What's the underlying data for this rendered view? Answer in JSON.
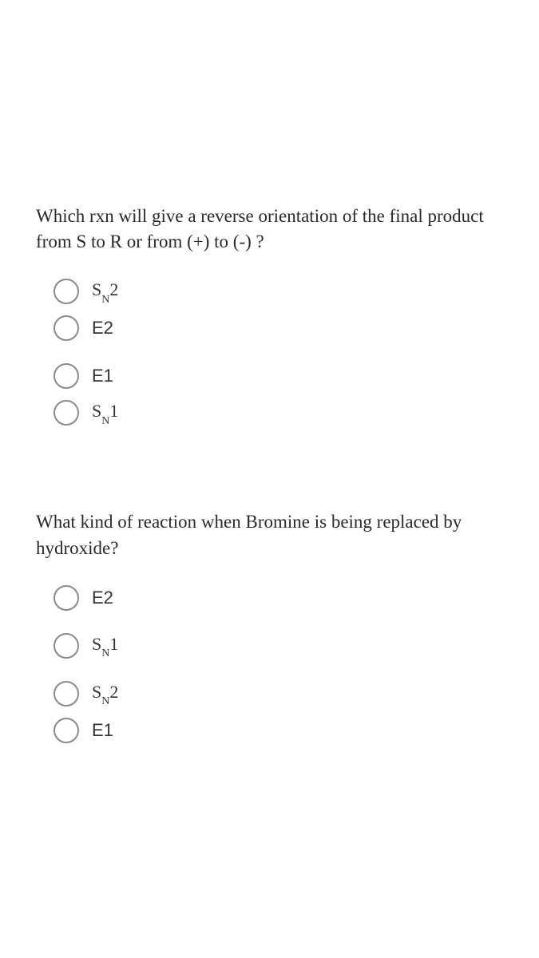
{
  "background_color": "#ffffff",
  "text_color": "#2a2a2a",
  "radio_border_color": "#8a8a8a",
  "questions": [
    {
      "prompt": "Which rxn will give a reverse orientation of the final product from S to R or from (+) to  (-) ?",
      "options": [
        {
          "type": "sn",
          "base": "S",
          "sub": "N",
          "num": "2",
          "gap_above": false
        },
        {
          "type": "plain",
          "text": "E2",
          "gap_above": false
        },
        {
          "type": "plain",
          "text": "E1",
          "gap_above": true
        },
        {
          "type": "sn",
          "base": "S",
          "sub": "N",
          "num": "1",
          "gap_above": false
        }
      ]
    },
    {
      "prompt": "What kind of reaction when Bromine is being replaced by hydroxide?",
      "options": [
        {
          "type": "plain",
          "text": "E2",
          "gap_above": false
        },
        {
          "type": "sn",
          "base": "S",
          "sub": "N",
          "num": "1",
          "gap_above": true
        },
        {
          "type": "sn",
          "base": "S",
          "sub": "N",
          "num": "2",
          "gap_above": true
        },
        {
          "type": "plain",
          "text": "E1",
          "gap_above": false
        }
      ]
    }
  ]
}
